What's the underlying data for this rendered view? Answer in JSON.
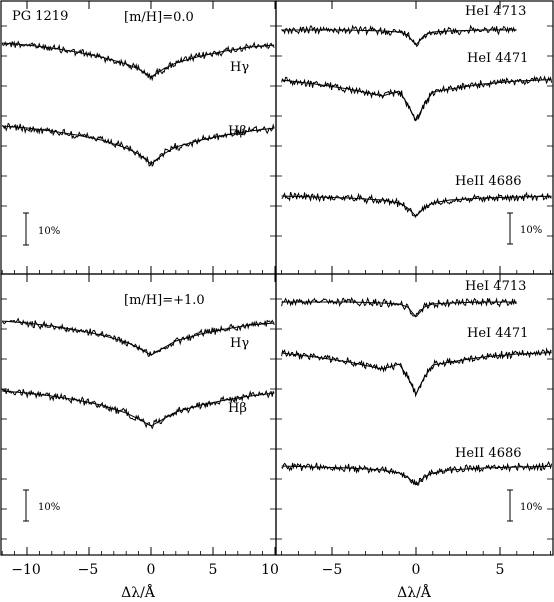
{
  "figure": {
    "object_label": "PG 1219",
    "xlabel": "Δλ/Å",
    "x_ticks_left": [
      "−10",
      "−5",
      "0",
      "5",
      "10"
    ],
    "x_ticks_right": [
      "−5",
      "0",
      "5"
    ],
    "scale_bar_label": "10%",
    "line_color": "#000000"
  },
  "chart_data": [
    {
      "type": "line",
      "panel": "top-left",
      "annotation": "[m/H]=0.0",
      "xlim": [
        -12,
        10
      ],
      "series": [
        {
          "name": "Hγ",
          "x": [
            -12,
            -10,
            -8,
            -6,
            -4,
            -2,
            -1,
            0,
            1,
            2,
            4,
            6,
            8,
            10
          ],
          "depth_pct": [
            3,
            5,
            8,
            12,
            17,
            24,
            29,
            37,
            29,
            23,
            16,
            11,
            7,
            5
          ]
        },
        {
          "name": "Hβ",
          "x": [
            -12,
            -10,
            -8,
            -6,
            -4,
            -2,
            -1,
            0,
            1,
            2,
            4,
            6,
            8,
            10
          ],
          "depth_pct": [
            3,
            5,
            8,
            12,
            17,
            25,
            31,
            41,
            31,
            24,
            17,
            12,
            8,
            5
          ]
        }
      ]
    },
    {
      "type": "line",
      "panel": "top-right",
      "xlim": [
        -8,
        9
      ],
      "series": [
        {
          "name": "HeI 4713",
          "x": [
            -8,
            -4,
            -2,
            -1,
            -0.5,
            0,
            0.5,
            1,
            2,
            4,
            6
          ],
          "depth_pct": [
            0,
            0,
            1,
            2,
            5,
            15,
            5,
            2,
            1,
            0,
            0
          ]
        },
        {
          "name": "HeI 4471",
          "x": [
            -8,
            -6,
            -4,
            -2,
            -1,
            -0.5,
            0,
            0.5,
            1,
            2,
            4,
            6,
            9
          ],
          "depth_pct": [
            6,
            10,
            15,
            22,
            17,
            30,
            47,
            30,
            18,
            15,
            10,
            7,
            5
          ]
        },
        {
          "name": "HeII 4686",
          "x": [
            -8,
            -6,
            -4,
            -2,
            -1,
            -0.5,
            0,
            0.5,
            1,
            2,
            4,
            6,
            9
          ],
          "depth_pct": [
            0,
            1,
            2,
            4,
            7,
            12,
            20,
            12,
            7,
            4,
            2,
            1,
            0
          ]
        }
      ]
    },
    {
      "type": "line",
      "panel": "bottom-left",
      "annotation": "[m/H]=+1.0",
      "xlim": [
        -12,
        10
      ],
      "series": [
        {
          "name": "Hγ",
          "x": [
            -12,
            -10,
            -8,
            -6,
            -4,
            -2,
            -1,
            0,
            1,
            2,
            4,
            6,
            8,
            10
          ],
          "depth_pct": [
            3,
            5,
            8,
            12,
            17,
            24,
            30,
            37,
            30,
            23,
            16,
            11,
            7,
            5
          ]
        },
        {
          "name": "Hβ",
          "x": [
            -12,
            -10,
            -8,
            -6,
            -4,
            -2,
            -1,
            0,
            1,
            2,
            4,
            6,
            8,
            10
          ],
          "depth_pct": [
            3,
            5,
            8,
            12,
            17,
            25,
            31,
            38,
            31,
            24,
            17,
            12,
            8,
            5
          ]
        }
      ]
    },
    {
      "type": "line",
      "panel": "bottom-right",
      "xlim": [
        -8,
        9
      ],
      "series": [
        {
          "name": "HeI 4713",
          "x": [
            -8,
            -4,
            -2,
            -1,
            -0.5,
            0,
            0.5,
            1,
            2,
            4,
            6
          ],
          "depth_pct": [
            0,
            0,
            1,
            2,
            5,
            15,
            5,
            2,
            1,
            0,
            0
          ]
        },
        {
          "name": "HeI 4471",
          "x": [
            -8,
            -6,
            -4,
            -2,
            -1,
            -0.5,
            0,
            0.5,
            1,
            2,
            4,
            6,
            9
          ],
          "depth_pct": [
            6,
            10,
            15,
            22,
            17,
            30,
            47,
            30,
            18,
            15,
            10,
            7,
            5
          ]
        },
        {
          "name": "HeII 4686",
          "x": [
            -8,
            -6,
            -4,
            -2,
            -1,
            -0.5,
            0,
            0.5,
            1,
            2,
            4,
            6,
            9
          ],
          "depth_pct": [
            0,
            1,
            2,
            4,
            7,
            11,
            19,
            11,
            7,
            4,
            2,
            1,
            0
          ]
        }
      ]
    }
  ]
}
